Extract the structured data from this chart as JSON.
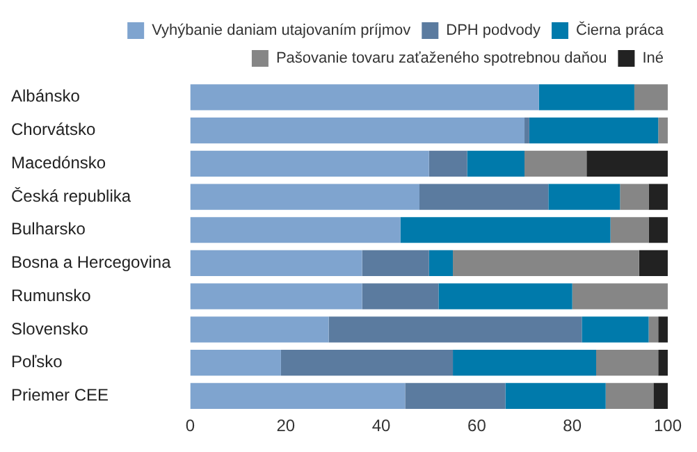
{
  "chart_data": {
    "type": "bar",
    "orientation": "horizontal",
    "stacked": true,
    "categories": [
      "Albánsko",
      "Chorvátsko",
      "Macedónsko",
      "Česká republika",
      "Bulharsko",
      "Bosna a Hercegovina",
      "Rumunsko",
      "Slovensko",
      "Poľsko",
      "Priemer CEE"
    ],
    "series": [
      {
        "name": "Vyhýbanie daniam utajovaním príjmov",
        "color": "#7fa4cf",
        "values": [
          73,
          70,
          50,
          48,
          44,
          36,
          36,
          29,
          19,
          45
        ]
      },
      {
        "name": "DPH podvody",
        "color": "#5b7b9f",
        "values": [
          0,
          1,
          8,
          27,
          0,
          14,
          16,
          53,
          36,
          21
        ]
      },
      {
        "name": "Čierna práca",
        "color": "#007aab",
        "values": [
          20,
          27,
          12,
          15,
          44,
          5,
          28,
          14,
          30,
          21
        ]
      },
      {
        "name": "Pašovanie tovaru zaťaženého spotrebnou daňou",
        "color": "#868686",
        "values": [
          7,
          2,
          13,
          6,
          8,
          39,
          20,
          2,
          13,
          10
        ]
      },
      {
        "name": "Iné",
        "color": "#222222",
        "values": [
          0,
          0,
          17,
          4,
          4,
          6,
          0,
          2,
          2,
          3
        ]
      }
    ],
    "xlim": [
      0,
      100
    ],
    "xticks": [
      0,
      20,
      40,
      60,
      80,
      100
    ],
    "grid": false,
    "legend": "top"
  }
}
